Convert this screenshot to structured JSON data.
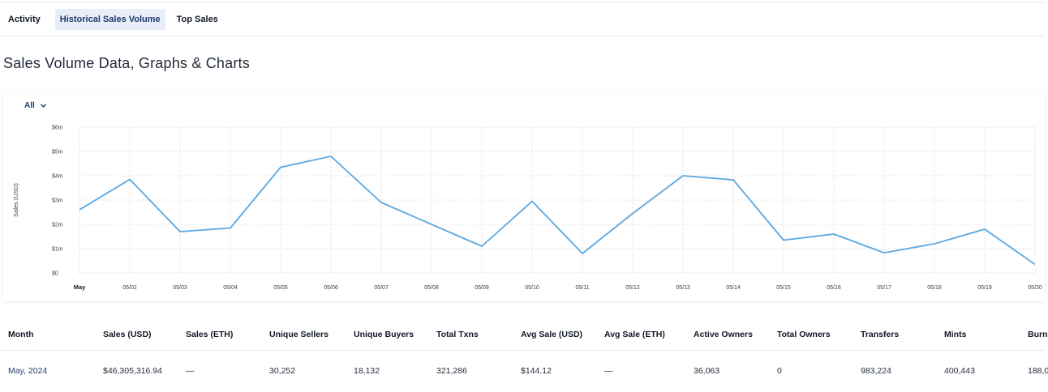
{
  "tabs": [
    {
      "label": "Activity",
      "active": false
    },
    {
      "label": "Historical Sales Volume",
      "active": true
    },
    {
      "label": "Top Sales",
      "active": false
    }
  ],
  "page_title": "Sales Volume Data, Graphs & Charts",
  "filter": {
    "label": "All",
    "icon": "chevron-down-icon"
  },
  "colors": {
    "line": "#5ba7e0",
    "accent": "#1e3a6e",
    "tab_active_bg": "#e8eef7"
  },
  "chart_data": {
    "type": "line",
    "ylabel": "Sales (USD)",
    "y_ticks": [
      "$0",
      "$1m",
      "$2m",
      "$3m",
      "$4m",
      "$5m",
      "$6m"
    ],
    "ylim": [
      0,
      6000000
    ],
    "categories": [
      "May",
      "05/02",
      "05/03",
      "05/04",
      "05/05",
      "05/06",
      "05/07",
      "05/08",
      "05/09",
      "05/10",
      "05/11",
      "05/12",
      "05/13",
      "05/14",
      "05/15",
      "05/16",
      "05/17",
      "05/18",
      "05/19",
      "05/20"
    ],
    "values": [
      2600000,
      3850000,
      1700000,
      1850000,
      4350000,
      4800000,
      2900000,
      2000000,
      1100000,
      2950000,
      800000,
      2450000,
      4000000,
      3830000,
      1350000,
      1600000,
      830000,
      1200000,
      1800000,
      350000
    ],
    "grid": true,
    "legend": "none"
  },
  "table": {
    "headers": [
      "Month",
      "Sales (USD)",
      "Sales (ETH)",
      "Unique Sellers",
      "Unique Buyers",
      "Total Txns",
      "Avg Sale (USD)",
      "Avg Sale (ETH)",
      "Active Owners",
      "Total Owners",
      "Transfers",
      "Mints",
      "Burn"
    ],
    "rows": [
      [
        "May, 2024",
        "$46,305,316.94",
        "—",
        "30,252",
        "18,132",
        "321,286",
        "$144.12",
        "—",
        "36,063",
        "0",
        "983,224",
        "400,443",
        "188,0"
      ]
    ]
  }
}
